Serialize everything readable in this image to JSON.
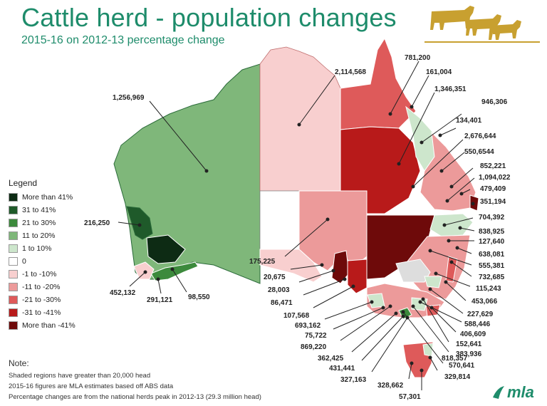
{
  "header": {
    "title": "Cattle herd - population changes",
    "subtitle": "2015-16 on 2012-13 percentage change"
  },
  "legend": {
    "title": "Legend",
    "items": [
      {
        "label": "More than 41%",
        "color": "#0d2b14"
      },
      {
        "label": "31 to 41%",
        "color": "#1f5a2a"
      },
      {
        "label": "21 to 30%",
        "color": "#3c8a3c"
      },
      {
        "label": "11 to 20%",
        "color": "#7fb77a"
      },
      {
        "label": "1 to 10%",
        "color": "#cde6cc"
      },
      {
        "label": "0",
        "color": "#ffffff"
      },
      {
        "label": "-1 to -10%",
        "color": "#f8cfcf"
      },
      {
        "label": "-11 to -20%",
        "color": "#ec9a9a"
      },
      {
        "label": "-21 to -30%",
        "color": "#de5a5a"
      },
      {
        "label": "-31 to -41%",
        "color": "#b81a1a"
      },
      {
        "label": "More than -41%",
        "color": "#6e0a0a"
      }
    ]
  },
  "map_labels": {
    "wa": "1,256,969",
    "nt": "2,114,568",
    "sw_wa": "216,250",
    "sa_north": "175,225",
    "wa_452": "452,132",
    "wa_291": "291,121",
    "wa_98": "98,550",
    "q781": "781,200",
    "q161": "161,004",
    "q1346": "1,346,351",
    "q946": "946,306",
    "q134": "134,401",
    "q2676": "2,676,644",
    "q550": "550,6544",
    "q852": "852,221",
    "q1094": "1,094,022",
    "q479": "479,409",
    "q351": "351,194",
    "n704": "704,392",
    "n838": "838,925",
    "n127": "127,640",
    "n638": "638,081",
    "n555": "555,381",
    "n732": "732,685",
    "n115": "115,243",
    "n453": "453,066",
    "v227": "227,629",
    "v588": "588,446",
    "v406": "406,609",
    "v152": "152,641",
    "v383": "383,936",
    "v570": "570,641",
    "v818": "818,357",
    "t329": "329,814",
    "t328": "328,662",
    "t57": "57,301",
    "s20": "20,675",
    "s28": "28,003",
    "s86": "86,471",
    "s107": "107,568",
    "s693": "693,162",
    "s75": "75,722",
    "s869": "869,220",
    "s362": "362,425",
    "s431": "431,441",
    "s327": "327,163"
  },
  "notes": {
    "title": "Note:",
    "lines": [
      "Shaded regions have greater than 20,000 head",
      "2015-16 figures are MLA estimates based off ABS data",
      "Percentage changes are from the national herds peak in 2012-13 (29.3 million head)"
    ]
  },
  "logo": {
    "text": "mla"
  },
  "colors": {
    "title_green": "#1e8c6b",
    "gold": "#c8a030",
    "outline_green": "#2b6b3a"
  }
}
